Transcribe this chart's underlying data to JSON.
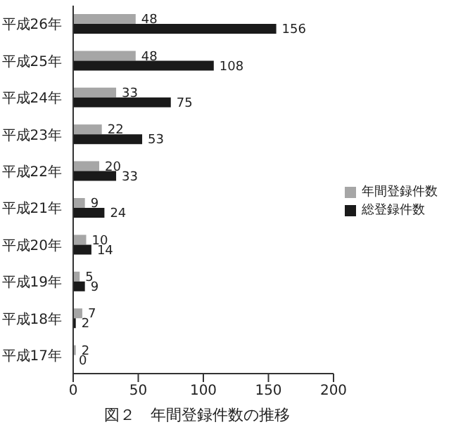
{
  "chart_data": {
    "type": "bar",
    "orientation": "horizontal",
    "title": "図２　年間登録件数の推移",
    "categories": [
      "平成26年",
      "平成25年",
      "平成24年",
      "平成23年",
      "平成22年",
      "平成21年",
      "平成20年",
      "平成19年",
      "平成18年",
      "平成17年"
    ],
    "series": [
      {
        "name": "年間登録件数",
        "color": "#a6a6a6",
        "values": [
          48,
          48,
          33,
          22,
          20,
          9,
          10,
          5,
          7,
          2
        ]
      },
      {
        "name": "総登録件数",
        "color": "#1a1a1a",
        "values": [
          156,
          108,
          75,
          53,
          33,
          24,
          14,
          9,
          2,
          0
        ]
      }
    ],
    "xlim": [
      0,
      200
    ],
    "xticks": [
      0,
      50,
      100,
      150,
      200
    ],
    "data_labels": true,
    "legend": "right",
    "grid": false
  }
}
